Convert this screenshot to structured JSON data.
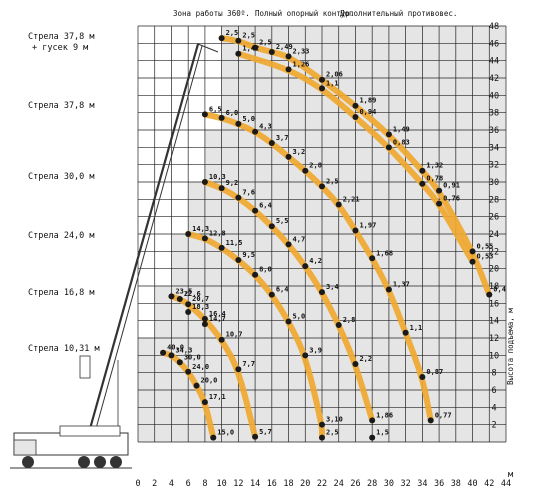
{
  "header": {
    "zone": "Зона работы 360º.",
    "outrigger": "Полный опорный контур.",
    "counterweight": "Дополнительный противовес."
  },
  "boom_labels": [
    [
      "Стрела 37,8 м",
      "+ гусек 9 м"
    ],
    [
      "Стрела 37,8 м"
    ],
    [
      "Стрела 30,0 м"
    ],
    [
      "Стрела 24,0 м"
    ],
    [
      "Стрела 16,8 м"
    ],
    [
      "Стрела 10,31 м"
    ]
  ],
  "axis": {
    "ylabel": "Высота подъема, м",
    "xunit": "м"
  },
  "colors": {
    "curve": "#f0a830",
    "grid": "#222222",
    "shade": "#cfcfcf",
    "point": "#1a1a1a"
  },
  "chart_data": {
    "type": "line",
    "xlim": [
      0,
      44
    ],
    "ylim": [
      0,
      48
    ],
    "xticks": [
      0,
      2,
      4,
      6,
      8,
      10,
      12,
      14,
      16,
      18,
      20,
      22,
      24,
      26,
      28,
      30,
      32,
      34,
      36,
      38,
      40,
      42,
      44
    ],
    "yticks": [
      2,
      4,
      6,
      8,
      10,
      12,
      14,
      16,
      18,
      20,
      22,
      24,
      26,
      28,
      30,
      32,
      34,
      36,
      38,
      40,
      42,
      44,
      46,
      48
    ],
    "grid": true,
    "series": [
      {
        "name": "Стрела 37,8 м + гусек 9 м",
        "points": [
          {
            "x": 10,
            "y": 46.6,
            "label": "2,5"
          },
          {
            "x": 12,
            "y": 46.3,
            "label": "2,5"
          },
          {
            "x": 14,
            "y": 45.5,
            "label": "2,5"
          },
          {
            "x": 16,
            "y": 45.0,
            "label": "2,49"
          },
          {
            "x": 18,
            "y": 44.5,
            "label": "2,33"
          },
          {
            "x": 22,
            "y": 41.8,
            "label": "2,06"
          },
          {
            "x": 26,
            "y": 38.8,
            "label": "1,89"
          },
          {
            "x": 30,
            "y": 35.5,
            "label": "1,49"
          },
          {
            "x": 34,
            "y": 31.3,
            "label": "1,32"
          },
          {
            "x": 36,
            "y": 29.0,
            "label": "0,91"
          },
          {
            "x": 40,
            "y": 22.0,
            "label": "0,55"
          },
          {
            "x": 42,
            "y": 17.0,
            "label": "0,4"
          }
        ]
      },
      {
        "name": "Стрела 37,8 м (нижние значения)",
        "points": [
          {
            "x": 12,
            "y": 44.8,
            "label": "1,42"
          },
          {
            "x": 18,
            "y": 43.0,
            "label": "1,26"
          },
          {
            "x": 22,
            "y": 40.8,
            "label": "1,1"
          },
          {
            "x": 26,
            "y": 37.5,
            "label": "0,94"
          },
          {
            "x": 30,
            "y": 34.0,
            "label": "0,83"
          },
          {
            "x": 34,
            "y": 29.8,
            "label": "0,78"
          },
          {
            "x": 36,
            "y": 27.5,
            "label": "0,76"
          },
          {
            "x": 40,
            "y": 20.8,
            "label": "0,53"
          }
        ]
      },
      {
        "name": "Стрела 37,8 м",
        "points": [
          {
            "x": 8,
            "y": 37.8,
            "label": "6,5"
          },
          {
            "x": 10,
            "y": 37.4,
            "label": "6,0"
          },
          {
            "x": 12,
            "y": 36.7,
            "label": "5,0"
          },
          {
            "x": 14,
            "y": 35.8,
            "label": "4,3"
          },
          {
            "x": 16,
            "y": 34.5,
            "label": "3,7"
          },
          {
            "x": 18,
            "y": 32.9,
            "label": "3,2"
          },
          {
            "x": 20,
            "y": 31.3,
            "label": "2,8"
          },
          {
            "x": 22,
            "y": 29.5,
            "label": "2,5"
          },
          {
            "x": 24,
            "y": 27.4,
            "label": "2,21"
          },
          {
            "x": 26,
            "y": 24.4,
            "label": "1,97"
          },
          {
            "x": 28,
            "y": 21.2,
            "label": "1,68"
          },
          {
            "x": 30,
            "y": 17.6,
            "label": "1,37"
          },
          {
            "x": 32,
            "y": 12.6,
            "label": "1,1"
          },
          {
            "x": 34,
            "y": 7.5,
            "label": "0,87"
          },
          {
            "x": 35,
            "y": 2.5,
            "label": "0,77"
          }
        ]
      },
      {
        "name": "Стрела 30,0 м",
        "points": [
          {
            "x": 8,
            "y": 30.0,
            "label": "10,3"
          },
          {
            "x": 10,
            "y": 29.3,
            "label": "9,2"
          },
          {
            "x": 12,
            "y": 28.2,
            "label": "7,6"
          },
          {
            "x": 14,
            "y": 26.7,
            "label": "6,4"
          },
          {
            "x": 16,
            "y": 24.9,
            "label": "5,5"
          },
          {
            "x": 18,
            "y": 22.8,
            "label": "4,7"
          },
          {
            "x": 20,
            "y": 20.3,
            "label": "4,2"
          },
          {
            "x": 22,
            "y": 17.3,
            "label": "3,4"
          },
          {
            "x": 24,
            "y": 13.5,
            "label": "2,8"
          },
          {
            "x": 26,
            "y": 9.0,
            "label": "2,2"
          },
          {
            "x": 28,
            "y": 2.5,
            "label": "1,86"
          }
        ]
      },
      {
        "name": "Стрела 24,0 м",
        "points": [
          {
            "x": 6,
            "y": 24.0,
            "label": "14,3"
          },
          {
            "x": 8,
            "y": 23.5,
            "label": "12,8"
          },
          {
            "x": 10,
            "y": 22.4,
            "label": "11,5"
          },
          {
            "x": 12,
            "y": 21.0,
            "label": "9,5"
          },
          {
            "x": 14,
            "y": 19.3,
            "label": "8,0"
          },
          {
            "x": 16,
            "y": 17.0,
            "label": "6,4"
          },
          {
            "x": 18,
            "y": 13.9,
            "label": "5,0"
          },
          {
            "x": 20,
            "y": 10.0,
            "label": "3,9"
          },
          {
            "x": 22,
            "y": 2.0,
            "label": "3,10"
          },
          {
            "x": 22,
            "y": 0.5,
            "label": "2,5"
          }
        ]
      },
      {
        "name": "Стрела 16,8 м",
        "points": [
          {
            "x": 4,
            "y": 16.8,
            "label": "23,5"
          },
          {
            "x": 5,
            "y": 16.5,
            "label": "22,6"
          },
          {
            "x": 6,
            "y": 15.9,
            "label": "20,7"
          },
          {
            "x": 8,
            "y": 14.2,
            "label": "16,4"
          },
          {
            "x": 10,
            "y": 11.8,
            "label": "10,7"
          },
          {
            "x": 12,
            "y": 8.4,
            "label": "7,7"
          },
          {
            "x": 14,
            "y": 0.6,
            "label": "5,7"
          }
        ]
      },
      {
        "name": "Стрела 16,8 м (вторые значения)",
        "points": [
          {
            "x": 6,
            "y": 15.0,
            "label": "18,3"
          },
          {
            "x": 8,
            "y": 13.6,
            "label": "14,7"
          }
        ]
      },
      {
        "name": "Стрела 10,31 м",
        "points": [
          {
            "x": 3,
            "y": 10.3,
            "label": "40,0"
          },
          {
            "x": 4,
            "y": 10.0,
            "label": "34,3"
          },
          {
            "x": 5,
            "y": 9.2,
            "label": "30,0"
          },
          {
            "x": 6,
            "y": 8.1,
            "label": "24,0"
          },
          {
            "x": 7,
            "y": 6.5,
            "label": "20,0"
          },
          {
            "x": 8,
            "y": 4.6,
            "label": "17,1"
          },
          {
            "x": 9,
            "y": 0.5,
            "label": "15,0"
          }
        ]
      },
      {
        "name": "Стрела 10,31 м (доп.)",
        "points": [
          {
            "x": 28,
            "y": 0.5,
            "label": "1,5"
          }
        ]
      }
    ]
  }
}
